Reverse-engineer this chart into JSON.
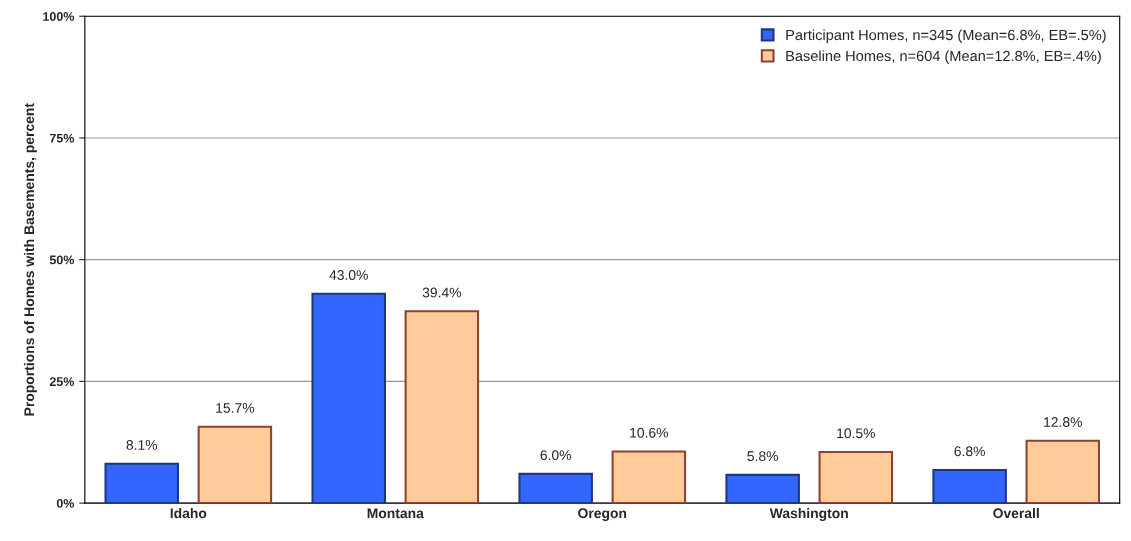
{
  "chart_data": {
    "type": "bar",
    "ylabel": "Proportions of Homes with Basements, percent",
    "categories": [
      "Idaho",
      "Montana",
      "Oregon",
      "Washington",
      "Overall"
    ],
    "series": [
      {
        "name": "Participant Homes, n=345 (Mean=6.8%, EB=.5%)",
        "color": "#3366ff",
        "values": [
          8.1,
          43.0,
          6.0,
          5.8,
          6.8
        ],
        "value_labels": [
          "8.1%",
          "43.0%",
          "6.0%",
          "5.8%",
          "6.8%"
        ]
      },
      {
        "name": "Baseline Homes, n=604 (Mean=12.8%, EB=.4%)",
        "color": "#ffcc99",
        "values": [
          15.7,
          39.4,
          10.6,
          10.5,
          12.8
        ],
        "value_labels": [
          "15.7%",
          "39.4%",
          "10.6%",
          "10.5%",
          "12.8%"
        ]
      }
    ],
    "ylim": [
      0,
      100
    ],
    "yticks": [
      {
        "value": 0,
        "label": "0%"
      },
      {
        "value": 25,
        "label": "25%"
      },
      {
        "value": 50,
        "label": "50%"
      },
      {
        "value": 75,
        "label": "75%"
      },
      {
        "value": 100,
        "label": "100%"
      }
    ],
    "grid": "y",
    "legend": "top right"
  }
}
